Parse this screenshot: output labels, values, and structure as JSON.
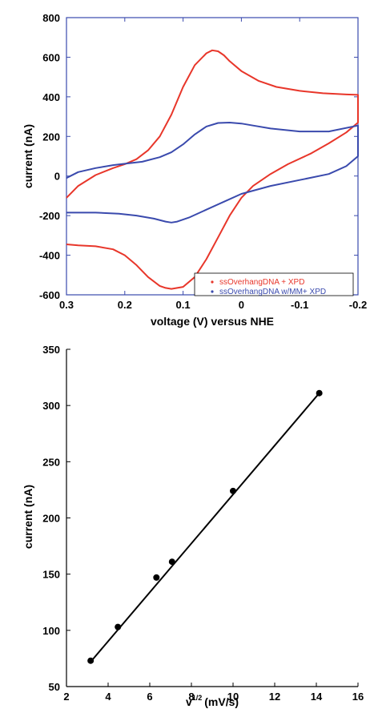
{
  "chart_data": [
    {
      "type": "line",
      "xlabel": "voltage (V) versus NHE",
      "ylabel": "current (nA)",
      "xlim": [
        0.3,
        -0.2
      ],
      "ylim": [
        -600,
        800
      ],
      "x_reversed": true,
      "xticks": [
        0.3,
        0.2,
        0.1,
        0,
        -0.1,
        -0.2
      ],
      "xtick_labels": [
        "0.3",
        "0.2",
        "0.1",
        "0",
        "-0.1",
        "-0.2"
      ],
      "yticks": [
        -600,
        -400,
        -200,
        0,
        200,
        400,
        600,
        800
      ],
      "ytick_labels": [
        "-600",
        "-400",
        "-200",
        "0",
        "200",
        "400",
        "600",
        "800"
      ],
      "legend_position": "bottom-right",
      "series": [
        {
          "name": "ssOverhangDNA + XPD",
          "color": "#e8362a",
          "x": [
            0.3,
            0.28,
            0.25,
            0.22,
            0.2,
            0.18,
            0.16,
            0.14,
            0.12,
            0.1,
            0.08,
            0.06,
            0.05,
            0.04,
            0.03,
            0.02,
            0.0,
            -0.03,
            -0.06,
            -0.1,
            -0.14,
            -0.18,
            -0.2,
            -0.2,
            -0.18,
            -0.15,
            -0.12,
            -0.08,
            -0.05,
            -0.02,
            0.0,
            0.02,
            0.04,
            0.06,
            0.08,
            0.1,
            0.12,
            0.13,
            0.14,
            0.16,
            0.18,
            0.2,
            0.22,
            0.25,
            0.28,
            0.3
          ],
          "y": [
            -110,
            -50,
            5,
            40,
            60,
            85,
            130,
            200,
            310,
            450,
            560,
            620,
            635,
            630,
            610,
            580,
            530,
            480,
            450,
            430,
            418,
            412,
            410,
            270,
            220,
            165,
            115,
            60,
            10,
            -50,
            -110,
            -200,
            -310,
            -420,
            -510,
            -560,
            -570,
            -565,
            -555,
            -510,
            -450,
            -400,
            -370,
            -355,
            -350,
            -345
          ]
        },
        {
          "name": "ssOverhangDNA w/MM+ XPD",
          "color": "#3a4aad",
          "x": [
            0.3,
            0.28,
            0.25,
            0.22,
            0.2,
            0.17,
            0.14,
            0.12,
            0.1,
            0.08,
            0.06,
            0.04,
            0.02,
            0.0,
            -0.02,
            -0.05,
            -0.1,
            -0.15,
            -0.2,
            -0.2,
            -0.18,
            -0.15,
            -0.1,
            -0.05,
            0.0,
            0.03,
            0.06,
            0.09,
            0.11,
            0.12,
            0.13,
            0.15,
            0.18,
            0.21,
            0.25,
            0.28,
            0.3
          ],
          "y": [
            -10,
            20,
            40,
            55,
            62,
            72,
            95,
            120,
            160,
            210,
            250,
            268,
            270,
            265,
            255,
            240,
            225,
            225,
            255,
            100,
            50,
            10,
            -20,
            -50,
            -90,
            -130,
            -170,
            -210,
            -230,
            -235,
            -230,
            -215,
            -200,
            -190,
            -185,
            -185,
            -185
          ]
        }
      ]
    },
    {
      "type": "scatter",
      "xlabel": "v",
      "xlabel_sup": "1/2",
      "xlabel_units": "(mV/s)",
      "ylabel": "current (nA)",
      "xlim": [
        2,
        16
      ],
      "ylim": [
        50,
        350
      ],
      "xticks": [
        2,
        4,
        6,
        8,
        10,
        12,
        14,
        16
      ],
      "xtick_labels": [
        "2",
        "4",
        "6",
        "8",
        "10",
        "12",
        "14",
        "16"
      ],
      "yticks": [
        50,
        100,
        150,
        200,
        250,
        300,
        350
      ],
      "ytick_labels": [
        "50",
        "100",
        "150",
        "200",
        "250",
        "300",
        "350"
      ],
      "points": {
        "x": [
          3.16,
          4.47,
          6.32,
          7.07,
          10.0,
          14.14
        ],
        "y": [
          73,
          103,
          147,
          161,
          224,
          311
        ]
      },
      "fit_line": {
        "x": [
          3.16,
          14.14
        ],
        "y": [
          72,
          311
        ]
      }
    }
  ]
}
